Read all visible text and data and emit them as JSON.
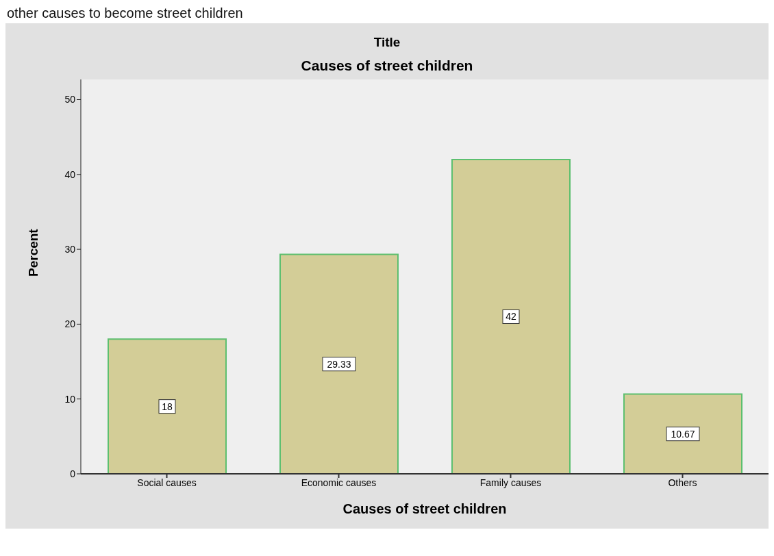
{
  "chart_data": {
    "type": "bar",
    "title": "Title",
    "subtitle": "Causes of street children",
    "xlabel": "Causes of street children",
    "ylabel": "Percent",
    "annotations": [
      "other causes to become street children"
    ],
    "categories": [
      "Social causes",
      "Economic causes",
      "Family causes",
      "Others"
    ],
    "values": [
      18,
      29.33,
      42,
      10.67
    ],
    "color": "#d3cd97",
    "ylim": [
      0,
      52.7
    ],
    "yticks": [
      0,
      10,
      20,
      30,
      40,
      50
    ],
    "grid": false,
    "data_labels": true
  }
}
